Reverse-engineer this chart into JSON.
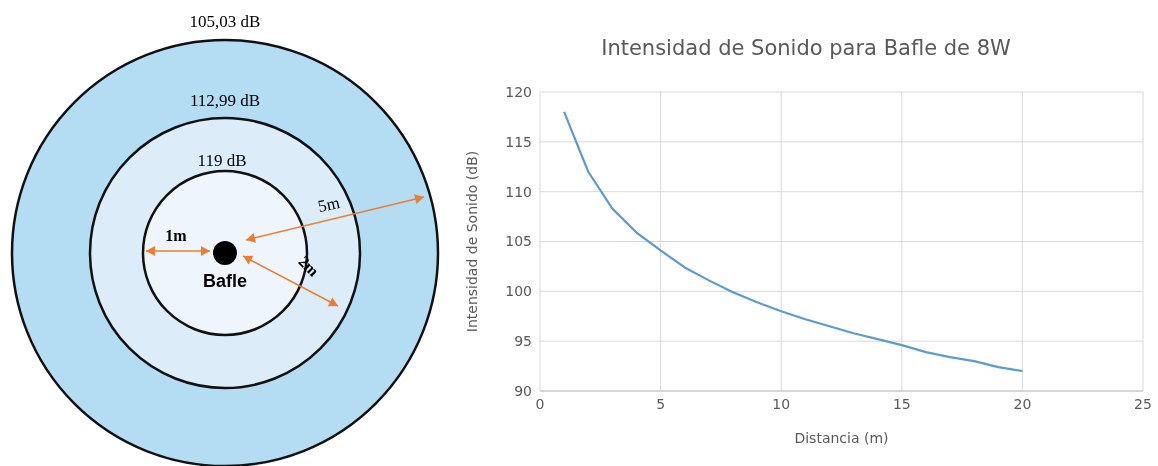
{
  "chart_data": [
    {
      "type": "other",
      "annotations": [
        "105,03 dB",
        "112,99 dB",
        "119 dB",
        "1m",
        "2m",
        "5m",
        "Bafle"
      ]
    },
    {
      "type": "line",
      "title": "Intensidad de Sonido para Bafle de 8W",
      "xlabel": "Distancia (m)",
      "ylabel": "Intensidad de Sonido (dB)",
      "x": [
        1,
        2,
        3,
        4,
        5,
        6,
        7,
        8,
        9,
        10,
        11,
        12,
        13,
        14,
        15,
        16,
        17,
        18,
        19,
        20
      ],
      "series": [
        {
          "color": "#5b9bd5",
          "values": [
            118.0,
            112.0,
            108.3,
            105.9,
            104.1,
            102.4,
            101.1,
            99.9,
            98.9,
            98.0,
            97.2,
            96.5,
            95.8,
            95.2,
            94.6,
            93.9,
            93.4,
            93.0,
            92.4,
            92.0
          ]
        }
      ],
      "xlim": [
        0,
        25
      ],
      "xticks": [
        0,
        5,
        10,
        15,
        20,
        25
      ],
      "ylim": [
        90,
        120
      ],
      "yticks": [
        90,
        95,
        100,
        105,
        110,
        115,
        120
      ],
      "grid": true,
      "marker": "none",
      "line_style": "solid"
    }
  ]
}
